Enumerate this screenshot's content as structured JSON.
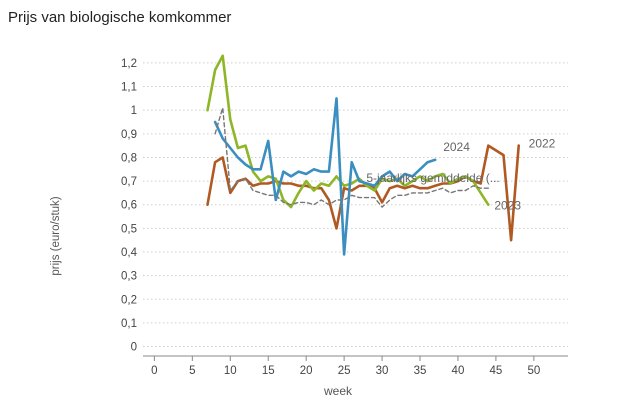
{
  "title": "Prijs van biologische komkommer",
  "chart_data": {
    "type": "line",
    "title": "Prijs van biologische komkommer",
    "xlabel": "week",
    "ylabel": "prijs (euro/stuk)",
    "xlim": [
      -1.5,
      54.5
    ],
    "ylim": [
      -0.04,
      1.28
    ],
    "xticks": [
      "0",
      "5",
      "10",
      "15",
      "20",
      "25",
      "30",
      "35",
      "40",
      "45",
      "50"
    ],
    "yticks": [
      "0",
      "0,1",
      "0,2",
      "0,3",
      "0,4",
      "0,5",
      "0,6",
      "0,7",
      "0,8",
      "0,9",
      "1",
      "1,1",
      "1,2"
    ],
    "grid": "horizontal",
    "series": [
      {
        "name": "2022",
        "color": "#b05a22",
        "dashed": false,
        "x": [
          7,
          8,
          9,
          10,
          11,
          12,
          13,
          14,
          15,
          16,
          17,
          18,
          19,
          20,
          21,
          22,
          23,
          24,
          25,
          26,
          27,
          28,
          29,
          30,
          31,
          32,
          33,
          34,
          35,
          36,
          37,
          38,
          39,
          40,
          41,
          42,
          43,
          44,
          45,
          46,
          47,
          48
        ],
        "y": [
          0.6,
          0.78,
          0.8,
          0.65,
          0.7,
          0.71,
          0.68,
          0.69,
          0.69,
          0.7,
          0.69,
          0.69,
          0.68,
          0.68,
          0.67,
          0.67,
          0.62,
          0.5,
          0.67,
          0.66,
          0.68,
          0.68,
          0.67,
          0.61,
          0.67,
          0.68,
          0.67,
          0.68,
          0.67,
          0.67,
          0.68,
          0.69,
          0.69,
          0.7,
          0.72,
          0.7,
          0.69,
          0.85,
          0.83,
          0.81,
          0.45,
          0.85
        ]
      },
      {
        "name": "2023",
        "color": "#8db628",
        "dashed": false,
        "x": [
          7,
          8,
          9,
          10,
          11,
          12,
          13,
          14,
          15,
          16,
          17,
          18,
          19,
          20,
          21,
          22,
          23,
          24,
          25,
          26,
          27,
          28,
          29,
          30,
          31,
          32,
          33,
          34,
          35,
          36,
          37,
          38,
          39,
          40,
          41,
          42,
          43,
          44
        ],
        "y": [
          1.0,
          1.17,
          1.23,
          0.96,
          0.84,
          0.85,
          0.74,
          0.7,
          0.72,
          0.71,
          0.62,
          0.59,
          0.65,
          0.7,
          0.66,
          0.69,
          0.68,
          0.72,
          0.68,
          0.69,
          0.71,
          0.68,
          0.66,
          0.71,
          0.7,
          0.71,
          0.68,
          0.7,
          0.72,
          0.7,
          0.72,
          0.73,
          0.69,
          0.71,
          0.72,
          0.7,
          0.65,
          0.6
        ]
      },
      {
        "name": "2024",
        "color": "#3b8fc0",
        "dashed": false,
        "x": [
          8,
          9,
          10,
          11,
          12,
          13,
          14,
          15,
          16,
          17,
          18,
          19,
          20,
          21,
          22,
          23,
          24,
          25,
          26,
          27,
          28,
          29,
          30,
          31,
          32,
          33,
          34,
          35,
          36,
          37
        ],
        "y": [
          0.95,
          0.88,
          0.84,
          0.8,
          0.77,
          0.75,
          0.75,
          0.87,
          0.62,
          0.74,
          0.72,
          0.74,
          0.73,
          0.75,
          0.74,
          0.74,
          1.05,
          0.39,
          0.78,
          0.7,
          0.69,
          0.68,
          0.72,
          0.74,
          0.7,
          0.73,
          0.72,
          0.75,
          0.78,
          0.79
        ]
      },
      {
        "name": "5-jaarlijks gemiddelde (...",
        "color": "#777777",
        "dashed": true,
        "x": [
          8,
          9,
          10,
          11,
          12,
          13,
          14,
          15,
          16,
          17,
          18,
          19,
          20,
          21,
          22,
          23,
          24,
          25,
          26,
          27,
          28,
          29,
          30,
          31,
          32,
          33,
          34,
          35,
          36,
          37,
          38,
          39,
          40,
          41,
          42,
          43,
          44
        ],
        "y": [
          0.9,
          1.01,
          0.66,
          0.7,
          0.71,
          0.66,
          0.65,
          0.64,
          0.64,
          0.61,
          0.6,
          0.61,
          0.61,
          0.6,
          0.62,
          0.6,
          0.62,
          0.62,
          0.64,
          0.63,
          0.63,
          0.63,
          0.59,
          0.62,
          0.64,
          0.64,
          0.65,
          0.65,
          0.65,
          0.66,
          0.67,
          0.65,
          0.66,
          0.66,
          0.68,
          0.67,
          0.67
        ]
      }
    ]
  }
}
